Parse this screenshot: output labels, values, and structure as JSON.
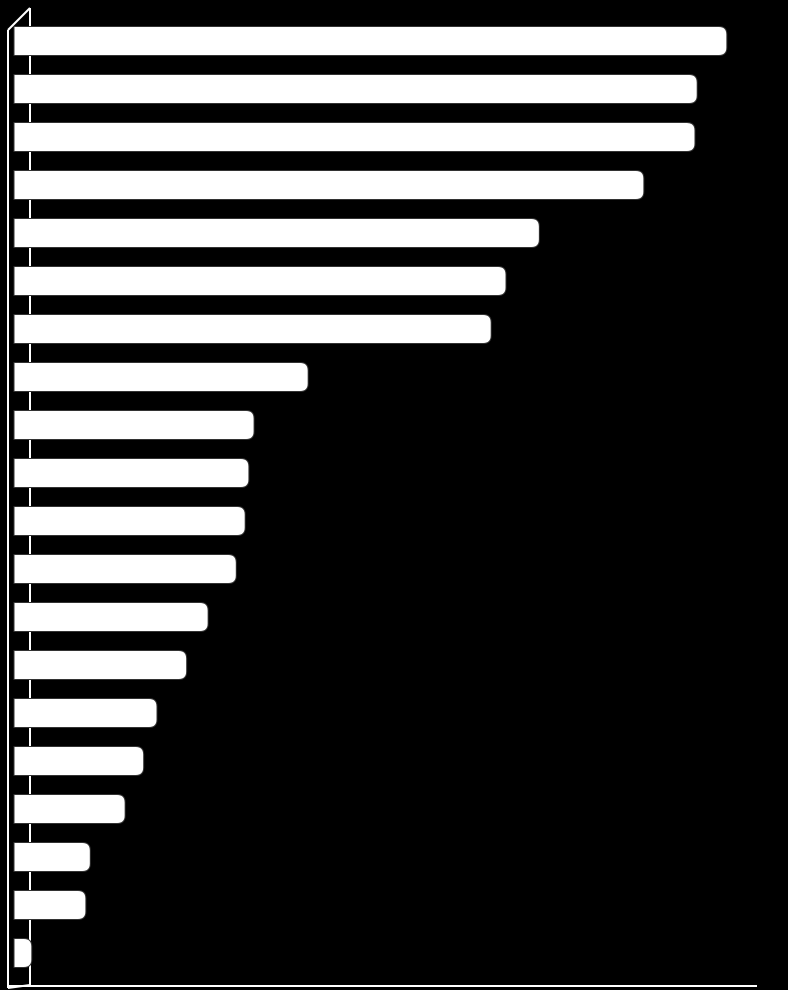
{
  "chart_data": {
    "type": "bar",
    "orientation": "horizontal",
    "color": "#ffffff",
    "values": [
      96.2,
      92.2,
      91.9,
      85.0,
      70.9,
      66.4,
      64.4,
      39.7,
      32.4,
      31.7,
      31.2,
      30.0,
      26.2,
      23.3,
      19.3,
      17.5,
      15.0,
      10.3,
      9.7,
      2.4
    ],
    "xlim": [
      0,
      100
    ]
  }
}
